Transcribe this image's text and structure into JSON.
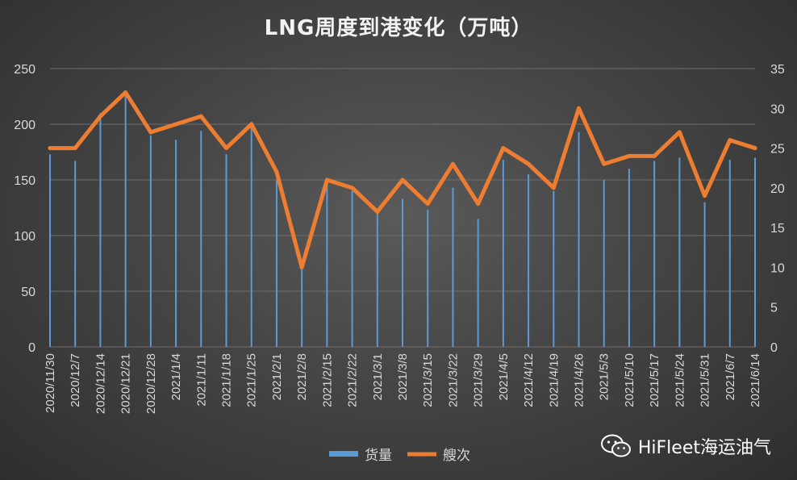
{
  "title": "LNG周度到港变化（万吨）",
  "watermark": {
    "text": "HiFleet海运油气",
    "icon": "wechat-icon"
  },
  "colors": {
    "bar": "#5b9bd5",
    "line": "#ed7d31",
    "grid": "#6e6e6e",
    "text": "#d9d9d9"
  },
  "chart_data": {
    "type": "bar",
    "title": "LNG周度到港变化（万吨）",
    "categories": [
      "2020/11/30",
      "2020/12/7",
      "2020/12/14",
      "2020/12/21",
      "2020/12/28",
      "2021/1/4",
      "2021/1/11",
      "2021/1/18",
      "2021/1/25",
      "2021/2/1",
      "2021/2/8",
      "2021/2/15",
      "2021/2/22",
      "2021/3/1",
      "2021/3/8",
      "2021/3/15",
      "2021/3/22",
      "2021/3/29",
      "2021/4/5",
      "2021/4/12",
      "2021/4/19",
      "2021/4/26",
      "2021/5/3",
      "2021/5/10",
      "2021/5/17",
      "2021/5/24",
      "2021/5/31",
      "2021/6/7",
      "2021/6/14"
    ],
    "series": [
      {
        "name": "货量",
        "type": "bar",
        "axis": "left",
        "values": [
          173,
          167,
          210,
          230,
          190,
          186,
          194,
          173,
          202,
          150,
          75,
          150,
          140,
          122,
          133,
          123,
          143,
          115,
          168,
          155,
          140,
          193,
          150,
          160,
          167,
          170,
          130,
          168,
          170
        ]
      },
      {
        "name": "艘次",
        "type": "line",
        "axis": "right",
        "values": [
          25,
          25,
          29,
          32,
          27,
          28,
          29,
          25,
          28,
          22,
          10,
          21,
          20,
          17,
          21,
          18,
          23,
          18,
          25,
          23,
          20,
          30,
          23,
          24,
          24,
          27,
          19,
          26,
          25
        ]
      }
    ],
    "ylim_left": [
      0,
      250
    ],
    "yticks_left": [
      "0",
      "50",
      "100",
      "150",
      "200",
      "250"
    ],
    "ylim_right": [
      0,
      35
    ],
    "yticks_right": [
      "0",
      "5",
      "10",
      "15",
      "20",
      "25",
      "30",
      "35"
    ],
    "grid": true,
    "legend": {
      "position": "bottom",
      "entries": [
        "货量",
        "艘次"
      ]
    }
  }
}
